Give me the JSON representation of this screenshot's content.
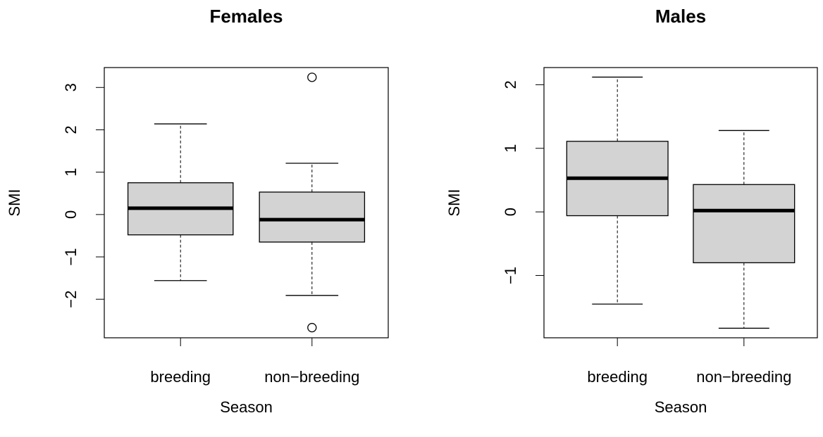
{
  "chart_data": [
    {
      "type": "box",
      "title": "Females",
      "xlabel": "Season",
      "ylabel": "SMI",
      "color": "#d3d3d3",
      "categories": [
        "breeding",
        "non−breeding"
      ],
      "boxes": [
        {
          "whisker_low": -1.56,
          "q1": -0.48,
          "median": 0.15,
          "q3": 0.75,
          "whisker_high": 2.14
        },
        {
          "whisker_low": -1.91,
          "q1": -0.65,
          "median": -0.12,
          "q3": 0.53,
          "whisker_high": 1.21,
          "outliers": [
            3.24,
            -2.67
          ]
        }
      ],
      "ylim": [
        -2.91,
        3.47
      ],
      "yticks": [
        {
          "value": -2,
          "label": "−2"
        },
        {
          "value": -1,
          "label": "−1"
        },
        0,
        1,
        2,
        3
      ]
    },
    {
      "type": "box",
      "title": "Males",
      "xlabel": "Season",
      "ylabel": "SMI",
      "color": "#d3d3d3",
      "categories": [
        "breeding",
        "non−breeding"
      ],
      "boxes": [
        {
          "whisker_low": -1.45,
          "q1": -0.06,
          "median": 0.53,
          "q3": 1.11,
          "whisker_high": 2.12
        },
        {
          "whisker_low": -1.83,
          "q1": -0.8,
          "median": 0.02,
          "q3": 0.43,
          "whisker_high": 1.28
        }
      ],
      "ylim": [
        -1.98,
        2.27
      ],
      "yticks": [
        {
          "value": -1,
          "label": "−1"
        },
        0,
        1,
        2
      ]
    }
  ]
}
